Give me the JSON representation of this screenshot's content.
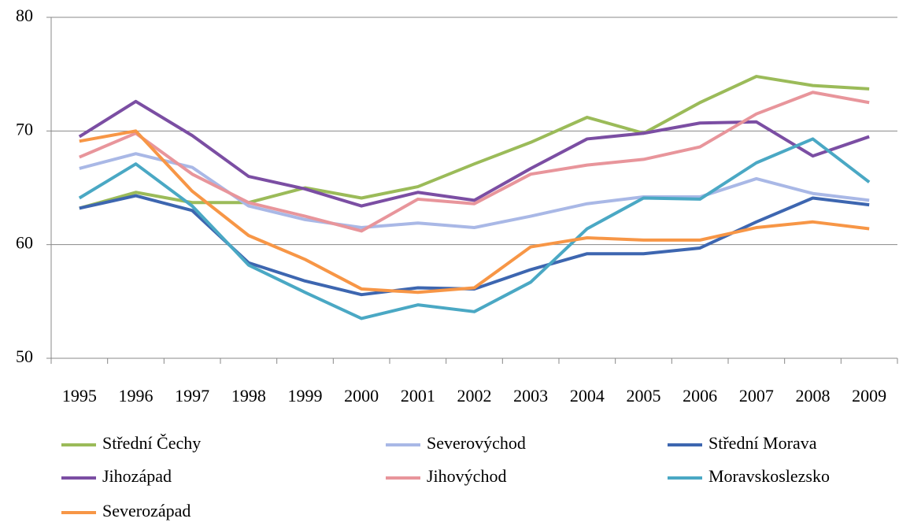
{
  "chart_data": {
    "type": "line",
    "categories": [
      "1995",
      "1996",
      "1997",
      "1998",
      "1999",
      "2000",
      "2001",
      "2002",
      "2003",
      "2004",
      "2005",
      "2006",
      "2007",
      "2008",
      "2009"
    ],
    "ylim": [
      50,
      80
    ],
    "yticks": [
      50,
      60,
      70,
      80
    ],
    "grid": true,
    "legend": "bottom",
    "series": [
      {
        "name": "Střední Čechy",
        "color": "#9bbb59",
        "values": [
          63.2,
          64.6,
          63.7,
          63.7,
          65.0,
          64.1,
          65.1,
          67.1,
          69.0,
          71.2,
          69.8,
          72.5,
          74.8,
          74.0,
          73.7
        ]
      },
      {
        "name": "Severovýchod",
        "color": "#a9b8e6",
        "values": [
          66.7,
          68.0,
          66.8,
          63.4,
          62.2,
          61.5,
          61.9,
          61.5,
          62.5,
          63.6,
          64.2,
          64.2,
          65.8,
          64.5,
          63.9
        ]
      },
      {
        "name": "Střední Morava",
        "color": "#3d66b0",
        "values": [
          63.2,
          64.3,
          63.0,
          58.4,
          56.8,
          55.6,
          56.2,
          56.1,
          57.8,
          59.2,
          59.2,
          59.7,
          62.0,
          64.1,
          63.5
        ]
      },
      {
        "name": "Jihozápad",
        "color": "#7b4ea3",
        "values": [
          69.5,
          72.6,
          69.6,
          66.0,
          64.9,
          63.4,
          64.6,
          63.9,
          66.7,
          69.3,
          69.8,
          70.7,
          70.8,
          67.8,
          69.5
        ]
      },
      {
        "name": "Jihovýchod",
        "color": "#e8959b",
        "values": [
          67.7,
          69.8,
          66.2,
          63.7,
          62.5,
          61.2,
          64.0,
          63.6,
          66.2,
          67.0,
          67.5,
          68.6,
          71.5,
          73.4,
          72.5
        ]
      },
      {
        "name": "Moravskoslezsko",
        "color": "#4aa8c4",
        "values": [
          64.1,
          67.1,
          63.4,
          58.2,
          55.8,
          53.5,
          54.7,
          54.1,
          56.7,
          61.4,
          64.1,
          64.0,
          67.2,
          69.3,
          65.5
        ]
      },
      {
        "name": "Severozápad",
        "color": "#f79646",
        "values": [
          69.1,
          70.0,
          64.7,
          60.8,
          58.7,
          56.1,
          55.8,
          56.2,
          59.8,
          60.6,
          60.4,
          60.4,
          61.5,
          62.0,
          61.4
        ]
      }
    ]
  }
}
